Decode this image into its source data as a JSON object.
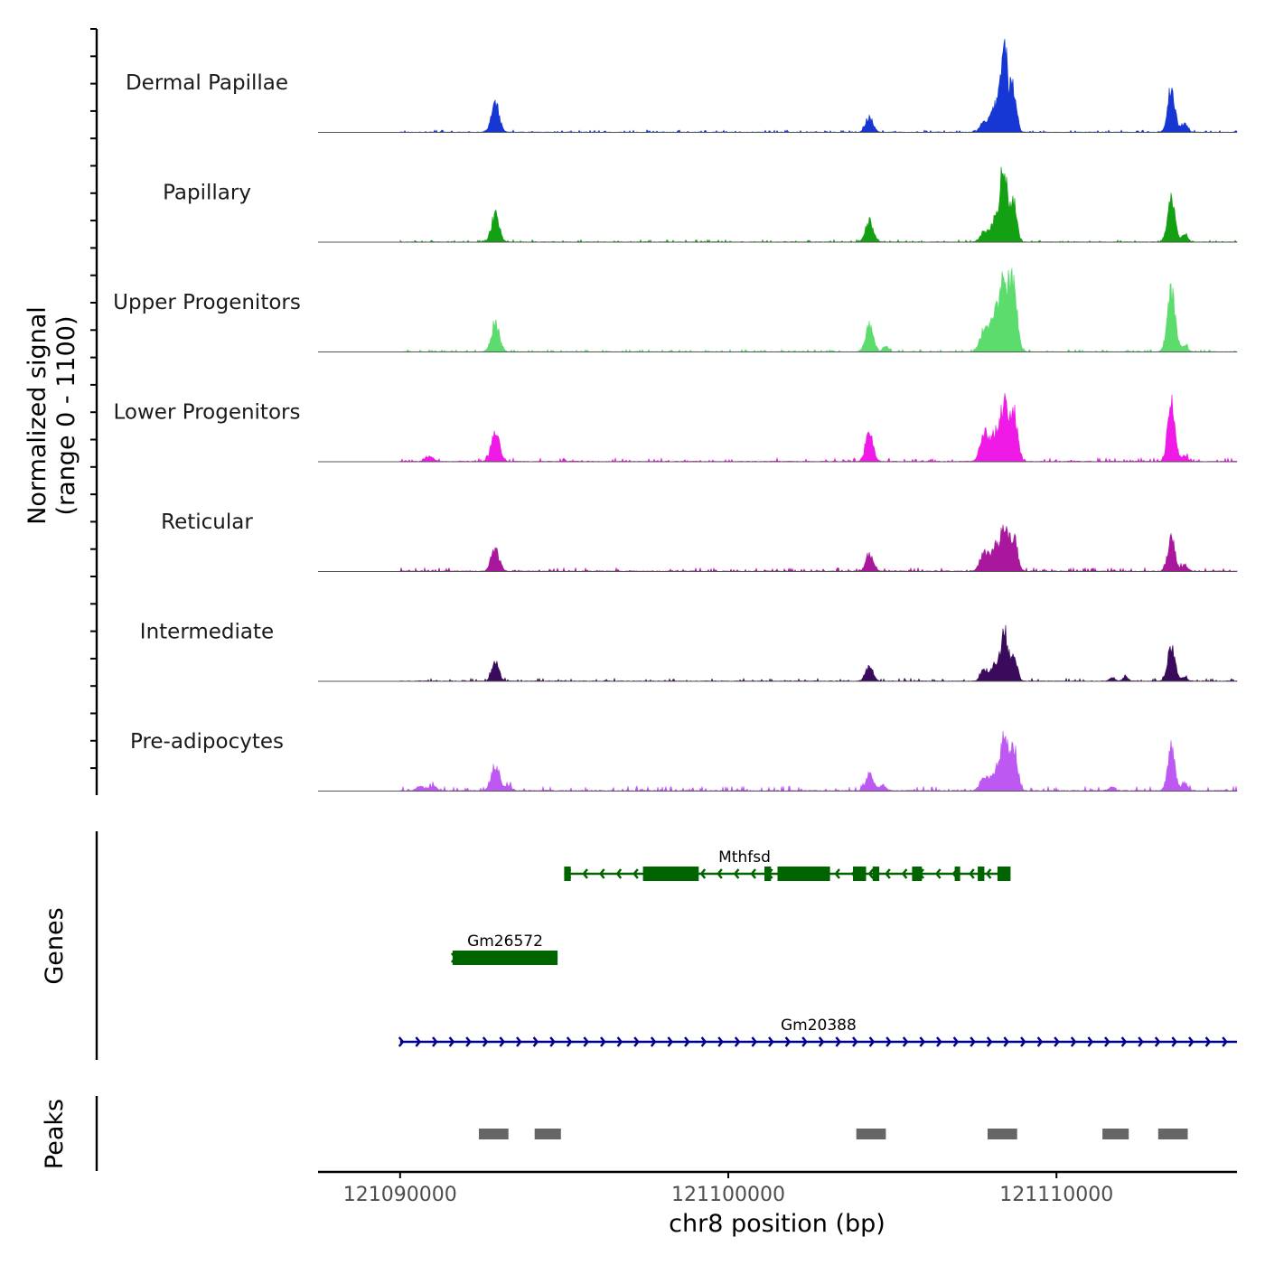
{
  "chart_data": {
    "type": "area",
    "title": "",
    "x_range": [
      121087500,
      121115500
    ],
    "signal_panel": {
      "ylabel_line1": "Normalized signal",
      "ylabel_line2": "(range 0 - 1100)",
      "ylim": [
        0,
        1100
      ],
      "series": [
        {
          "name": "Dermal Papillae",
          "color": "#1737d4",
          "baseline": 0.01,
          "peaks": [
            [
              121092900,
              0.32,
              120
            ],
            [
              121104300,
              0.18,
              110
            ],
            [
              121107800,
              0.12,
              120
            ],
            [
              121108100,
              0.25,
              110
            ],
            [
              121108400,
              1.0,
              120
            ],
            [
              121108700,
              0.5,
              90
            ],
            [
              121113500,
              0.52,
              110
            ],
            [
              121113900,
              0.1,
              90
            ]
          ]
        },
        {
          "name": "Papillary",
          "color": "#13a013",
          "baseline": 0.01,
          "peaks": [
            [
              121092900,
              0.32,
              120
            ],
            [
              121104300,
              0.24,
              120
            ],
            [
              121107800,
              0.12,
              120
            ],
            [
              121108100,
              0.22,
              110
            ],
            [
              121108400,
              0.92,
              120
            ],
            [
              121108700,
              0.45,
              90
            ],
            [
              121113500,
              0.5,
              110
            ],
            [
              121113900,
              0.1,
              90
            ]
          ]
        },
        {
          "name": "Upper Progenitors",
          "color": "#5bdc6d",
          "baseline": 0.01,
          "peaks": [
            [
              121092900,
              0.35,
              120
            ],
            [
              121104300,
              0.32,
              120
            ],
            [
              121104800,
              0.06,
              90
            ],
            [
              121107800,
              0.25,
              130
            ],
            [
              121108100,
              0.32,
              120
            ],
            [
              121108400,
              0.9,
              140
            ],
            [
              121108700,
              0.7,
              110
            ],
            [
              121113500,
              0.72,
              120
            ],
            [
              121113900,
              0.08,
              90
            ]
          ]
        },
        {
          "name": "Lower Progenitors",
          "color": "#f01ae6",
          "baseline": 0.015,
          "peaks": [
            [
              121090900,
              0.06,
              110
            ],
            [
              121092900,
              0.35,
              120
            ],
            [
              121104300,
              0.35,
              110
            ],
            [
              121107800,
              0.36,
              120
            ],
            [
              121108100,
              0.3,
              110
            ],
            [
              121108400,
              0.68,
              120
            ],
            [
              121108700,
              0.6,
              110
            ],
            [
              121113500,
              0.68,
              110
            ],
            [
              121113900,
              0.08,
              90
            ]
          ]
        },
        {
          "name": "Reticular",
          "color": "#a8179c",
          "baseline": 0.015,
          "peaks": [
            [
              121092900,
              0.25,
              120
            ],
            [
              121104300,
              0.2,
              110
            ],
            [
              121107800,
              0.25,
              120
            ],
            [
              121108100,
              0.24,
              110
            ],
            [
              121108400,
              0.52,
              120
            ],
            [
              121108700,
              0.4,
              110
            ],
            [
              121113500,
              0.38,
              110
            ],
            [
              121113900,
              0.08,
              90
            ]
          ]
        },
        {
          "name": "Intermediate",
          "color": "#3a0b5c",
          "baseline": 0.012,
          "peaks": [
            [
              121092900,
              0.22,
              110
            ],
            [
              121104300,
              0.17,
              110
            ],
            [
              121107800,
              0.13,
              110
            ],
            [
              121108100,
              0.16,
              100
            ],
            [
              121108400,
              0.6,
              110
            ],
            [
              121108700,
              0.28,
              100
            ],
            [
              121111700,
              0.04,
              80
            ],
            [
              121112100,
              0.05,
              80
            ],
            [
              121113500,
              0.42,
              110
            ],
            [
              121113900,
              0.05,
              80
            ]
          ]
        },
        {
          "name": "Pre-adipocytes",
          "color": "#bd58f2",
          "baseline": 0.02,
          "peaks": [
            [
              121090600,
              0.05,
              110
            ],
            [
              121091000,
              0.06,
              110
            ],
            [
              121092900,
              0.29,
              120
            ],
            [
              121093300,
              0.06,
              100
            ],
            [
              121104300,
              0.19,
              120
            ],
            [
              121104700,
              0.06,
              100
            ],
            [
              121107800,
              0.16,
              120
            ],
            [
              121108100,
              0.2,
              110
            ],
            [
              121108400,
              0.62,
              120
            ],
            [
              121108700,
              0.5,
              110
            ],
            [
              121111700,
              0.04,
              90
            ],
            [
              121113500,
              0.49,
              110
            ],
            [
              121113900,
              0.09,
              90
            ]
          ]
        }
      ]
    },
    "genes_panel": {
      "label": "Genes",
      "genes": [
        {
          "name": "Mthfsd",
          "strand": "-",
          "color": "#006400",
          "start": 121095000,
          "end": 121108500,
          "exons": [
            [
              121095000,
              121095200
            ],
            [
              121097400,
              121099100
            ],
            [
              121101100,
              121101300
            ],
            [
              121101500,
              121103100
            ],
            [
              121103800,
              121104200
            ],
            [
              121104400,
              121104600
            ],
            [
              121105600,
              121105900
            ],
            [
              121106900,
              121107000
            ],
            [
              121107600,
              121107800
            ],
            [
              121108200,
              121108600
            ]
          ]
        },
        {
          "name": "Gm26572",
          "strand": "+",
          "color": "#006400",
          "start": 121091600,
          "end": 121094800,
          "exons": [
            [
              121091600,
              121094800
            ]
          ]
        },
        {
          "name": "Gm20388",
          "strand": "+",
          "color": "#00008b",
          "start": 121090000,
          "end": 121115500,
          "exons": []
        }
      ]
    },
    "peaks_panel": {
      "label": "Peaks",
      "color": "#666666",
      "peaks": [
        [
          121092400,
          121093300
        ],
        [
          121094100,
          121094900
        ],
        [
          121103900,
          121104800
        ],
        [
          121107900,
          121108800
        ],
        [
          121111400,
          121112200
        ],
        [
          121113100,
          121114000
        ]
      ]
    },
    "x_axis": {
      "label": "chr8 position (bp)",
      "ticks": [
        121090000,
        121100000,
        121110000
      ],
      "tick_labels": [
        "121090000",
        "121100000",
        "121110000"
      ]
    }
  }
}
